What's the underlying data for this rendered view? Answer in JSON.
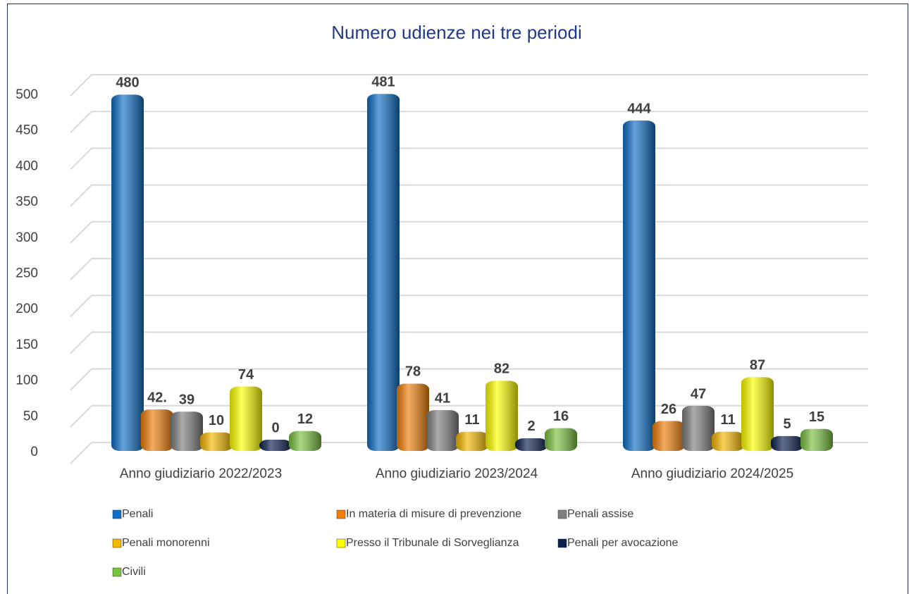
{
  "chart_data": {
    "type": "bar",
    "title": "Numero udienze nei tre periodi",
    "categories": [
      "Anno giudiziario 2022/2023",
      "Anno giudiziario 2023/2024",
      "Anno giudiziario 2024/2025"
    ],
    "series": [
      {
        "name": "Penali",
        "color": "#0f6fc6",
        "values": [
          480,
          481,
          444
        ]
      },
      {
        "name": "In materia di misure di prevenzione",
        "color": "#f07f09",
        "values": [
          42,
          78,
          26
        ],
        "value_labels": [
          "42.",
          "78",
          "26"
        ]
      },
      {
        "name": "Penali assise",
        "color": "#7f7f7f",
        "values": [
          39,
          41,
          47
        ]
      },
      {
        "name": "Penali monorenni",
        "color": "#f5b800",
        "values": [
          10,
          11,
          11
        ]
      },
      {
        "name": "Presso il Tribunale di Sorveglianza",
        "color": "#ffff00",
        "values": [
          74,
          82,
          87
        ]
      },
      {
        "name": "Penali per avocazione",
        "color": "#0b1f4d",
        "values": [
          0,
          2,
          5
        ]
      },
      {
        "name": "Civili",
        "color": "#7cc242",
        "values": [
          12,
          16,
          15
        ]
      }
    ],
    "ylim": [
      0,
      500
    ],
    "yticks": [
      0,
      50,
      100,
      150,
      200,
      250,
      300,
      350,
      400,
      450,
      500
    ],
    "grid": true,
    "legend": "bottom"
  }
}
